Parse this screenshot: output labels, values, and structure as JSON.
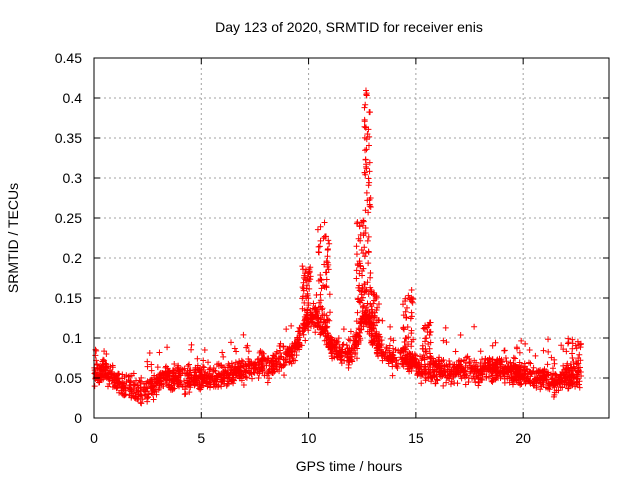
{
  "chart_data": {
    "type": "scatter",
    "title": "Day 123 of 2020, SRMTID for receiver enis",
    "xlabel": "GPS time / hours",
    "ylabel": "SRMTID / TECUs",
    "xlim": [
      0,
      24
    ],
    "ylim": [
      0,
      0.45
    ],
    "xticks": [
      0,
      5,
      10,
      15,
      20
    ],
    "xtick_labels": [
      "0",
      "5",
      "10",
      "15",
      "20"
    ],
    "yticks": [
      0,
      0.05,
      0.1,
      0.15,
      0.2,
      0.25,
      0.3,
      0.35,
      0.4,
      0.45
    ],
    "ytick_labels": [
      "0",
      "0.05",
      "0.1",
      "0.15",
      "0.2",
      "0.25",
      "0.3",
      "0.35",
      "0.4",
      "0.45"
    ],
    "grid": true,
    "marker": "plus",
    "point_color": "#ff0000",
    "profile": {
      "x": [
        0,
        0.5,
        1,
        1.5,
        2,
        2.5,
        3,
        3.5,
        4,
        4.5,
        5,
        5.5,
        6,
        6.5,
        7,
        7.5,
        8,
        8.5,
        9,
        9.3,
        9.6,
        9.9,
        10.2,
        10.5,
        10.8,
        11,
        11.5,
        12,
        12.3,
        12.6,
        12.9,
        13.2,
        13.5,
        14,
        14.5,
        15,
        15.5,
        16,
        17,
        18,
        19,
        20,
        21,
        21.5,
        22,
        22.7
      ],
      "y": [
        0.055,
        0.06,
        0.045,
        0.04,
        0.035,
        0.033,
        0.045,
        0.05,
        0.05,
        0.05,
        0.05,
        0.05,
        0.055,
        0.055,
        0.06,
        0.065,
        0.065,
        0.07,
        0.075,
        0.085,
        0.1,
        0.12,
        0.13,
        0.12,
        0.11,
        0.09,
        0.08,
        0.08,
        0.1,
        0.13,
        0.11,
        0.09,
        0.08,
        0.075,
        0.075,
        0.065,
        0.06,
        0.06,
        0.06,
        0.06,
        0.06,
        0.055,
        0.05,
        0.045,
        0.05,
        0.05
      ]
    },
    "spikes": [
      {
        "x_range": [
          9.7,
          10.1
        ],
        "max": 0.19
      },
      {
        "x_range": [
          10.4,
          11.0
        ],
        "max": 0.245
      },
      {
        "x_range": [
          12.2,
          12.6
        ],
        "max": 0.25
      },
      {
        "x_range": [
          12.6,
          12.9
        ],
        "max": 0.41
      },
      {
        "x_range": [
          12.9,
          13.3
        ],
        "max": 0.16
      },
      {
        "x_range": [
          14.4,
          14.9
        ],
        "max": 0.16
      },
      {
        "x_range": [
          15.3,
          15.7
        ],
        "max": 0.12
      },
      {
        "x_range": [
          22.0,
          22.7
        ],
        "max": 0.1
      }
    ],
    "time_span_hours": [
      0,
      22.7
    ],
    "point_count": 2200
  }
}
